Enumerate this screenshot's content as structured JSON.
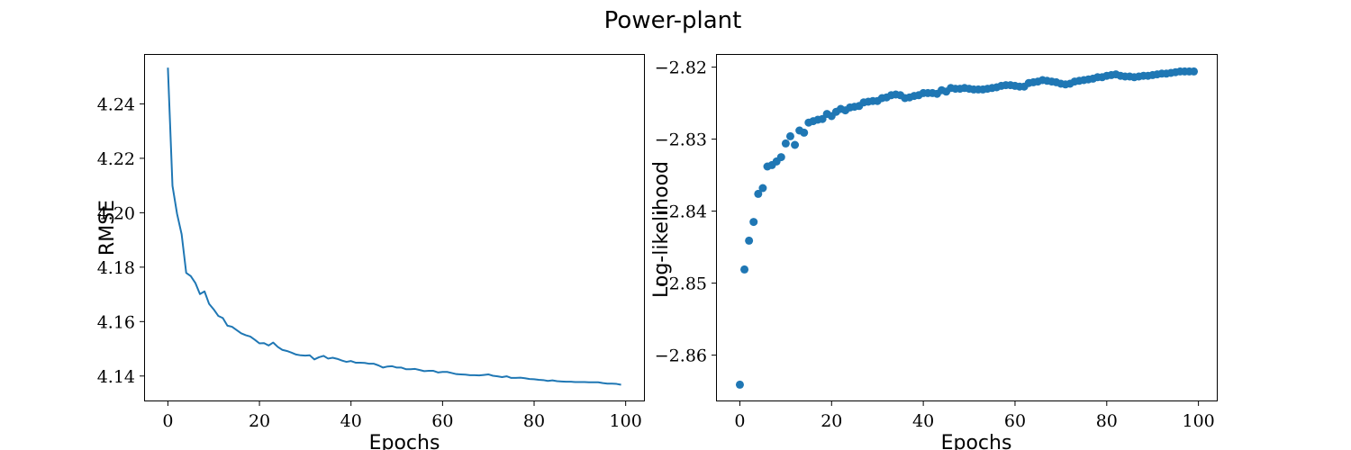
{
  "chart_data": {
    "title": "Power-plant",
    "charts": [
      {
        "type": "line",
        "xlabel": "Epochs",
        "ylabel": "RMSE",
        "xlim": [
          -5,
          104
        ],
        "ylim": [
          4.131,
          4.258
        ],
        "xticks": [
          0,
          20,
          40,
          60,
          80,
          100
        ],
        "yticks": [
          4.14,
          4.16,
          4.18,
          4.2,
          4.22,
          4.24
        ],
        "ytick_labels": [
          "4.14",
          "4.16",
          "4.18",
          "4.20",
          "4.22",
          "4.24"
        ],
        "color": "#1f77b4",
        "x": [
          0,
          1,
          2,
          3,
          4,
          5,
          6,
          7,
          8,
          9,
          10,
          11,
          12,
          13,
          14,
          15,
          16,
          17,
          18,
          19,
          20,
          21,
          22,
          23,
          24,
          25,
          26,
          27,
          28,
          29,
          30,
          31,
          32,
          33,
          34,
          35,
          36,
          37,
          38,
          39,
          40,
          41,
          42,
          43,
          44,
          45,
          46,
          47,
          48,
          49,
          50,
          51,
          52,
          53,
          54,
          55,
          56,
          57,
          58,
          59,
          60,
          61,
          62,
          63,
          64,
          65,
          66,
          67,
          68,
          69,
          70,
          71,
          72,
          73,
          74,
          75,
          76,
          77,
          78,
          79,
          80,
          81,
          82,
          83,
          84,
          85,
          86,
          87,
          88,
          89,
          90,
          91,
          92,
          93,
          94,
          95,
          96,
          97,
          98,
          99
        ],
        "y": [
          4.2533,
          4.2099,
          4.1996,
          4.1921,
          4.1779,
          4.1767,
          4.1742,
          4.1701,
          4.1711,
          4.1665,
          4.1645,
          4.1621,
          4.1613,
          4.1585,
          4.1581,
          4.1569,
          4.1557,
          4.155,
          4.1545,
          4.1533,
          4.152,
          4.1521,
          4.1512,
          4.1523,
          4.1507,
          4.1496,
          4.1492,
          4.1486,
          4.1479,
          4.1476,
          4.1475,
          4.1476,
          4.1461,
          4.1469,
          4.1474,
          4.1464,
          4.1467,
          4.1463,
          4.1457,
          4.1452,
          4.1455,
          4.1449,
          4.1449,
          4.1448,
          4.1445,
          4.1445,
          4.1439,
          4.1431,
          4.1435,
          4.1436,
          4.1431,
          4.1431,
          4.1425,
          4.1425,
          4.1426,
          4.1422,
          4.1418,
          4.1419,
          4.1419,
          4.1413,
          4.1415,
          4.1415,
          4.1411,
          4.1407,
          4.1406,
          4.1405,
          4.1403,
          4.1403,
          4.1402,
          4.1404,
          4.1406,
          4.1401,
          4.1399,
          4.1396,
          4.1399,
          4.1393,
          4.1393,
          4.1394,
          4.1392,
          4.1389,
          4.1388,
          4.1386,
          4.1385,
          4.1382,
          4.1384,
          4.1381,
          4.138,
          4.1379,
          4.1379,
          4.1378,
          4.1378,
          4.1378,
          4.1377,
          4.1377,
          4.1377,
          4.1374,
          4.1372,
          4.1372,
          4.1371,
          4.1368
        ]
      },
      {
        "type": "scatter",
        "xlabel": "Epochs",
        "ylabel": "Log-likelihood",
        "xlim": [
          -5,
          104
        ],
        "ylim": [
          -2.8663,
          -2.8183
        ],
        "xticks": [
          0,
          20,
          40,
          60,
          80,
          100
        ],
        "yticks": [
          -2.86,
          -2.85,
          -2.84,
          -2.83,
          -2.82
        ],
        "ytick_labels": [
          "−2.86",
          "−2.85",
          "−2.84",
          "−2.83",
          "−2.82"
        ],
        "color": "#1f77b4",
        "x": [
          0,
          1,
          2,
          3,
          4,
          5,
          6,
          7,
          8,
          9,
          10,
          11,
          12,
          13,
          14,
          15,
          16,
          17,
          18,
          19,
          20,
          21,
          22,
          23,
          24,
          25,
          26,
          27,
          28,
          29,
          30,
          31,
          32,
          33,
          34,
          35,
          36,
          37,
          38,
          39,
          40,
          41,
          42,
          43,
          44,
          45,
          46,
          47,
          48,
          49,
          50,
          51,
          52,
          53,
          54,
          55,
          56,
          57,
          58,
          59,
          60,
          61,
          62,
          63,
          64,
          65,
          66,
          67,
          68,
          69,
          70,
          71,
          72,
          73,
          74,
          75,
          76,
          77,
          78,
          79,
          80,
          81,
          82,
          83,
          84,
          85,
          86,
          87,
          88,
          89,
          90,
          91,
          92,
          93,
          94,
          95,
          96,
          97,
          98,
          99
        ],
        "y": [
          -2.8641,
          -2.8481,
          -2.8441,
          -2.8415,
          -2.8376,
          -2.8368,
          -2.8338,
          -2.8336,
          -2.8331,
          -2.8325,
          -2.8306,
          -2.8296,
          -2.8308,
          -2.8288,
          -2.8291,
          -2.8277,
          -2.8275,
          -2.8273,
          -2.8272,
          -2.8265,
          -2.8268,
          -2.8262,
          -2.8258,
          -2.826,
          -2.8256,
          -2.8255,
          -2.8254,
          -2.8249,
          -2.8248,
          -2.8247,
          -2.8247,
          -2.8243,
          -2.8242,
          -2.8239,
          -2.8238,
          -2.8239,
          -2.8243,
          -2.8242,
          -2.824,
          -2.8239,
          -2.8236,
          -2.8236,
          -2.8236,
          -2.8237,
          -2.8232,
          -2.8234,
          -2.8229,
          -2.823,
          -2.823,
          -2.8229,
          -2.823,
          -2.8231,
          -2.8231,
          -2.8231,
          -2.823,
          -2.8229,
          -2.8228,
          -2.8226,
          -2.8225,
          -2.8225,
          -2.8226,
          -2.8227,
          -2.8227,
          -2.8222,
          -2.8221,
          -2.822,
          -2.8218,
          -2.8219,
          -2.822,
          -2.8221,
          -2.8223,
          -2.8224,
          -2.8223,
          -2.822,
          -2.8219,
          -2.8218,
          -2.8217,
          -2.8216,
          -2.8214,
          -2.8214,
          -2.8212,
          -2.8211,
          -2.821,
          -2.8212,
          -2.8213,
          -2.8213,
          -2.8214,
          -2.8213,
          -2.8212,
          -2.8212,
          -2.8211,
          -2.821,
          -2.8209,
          -2.8209,
          -2.8208,
          -2.8207,
          -2.8206,
          -2.8206,
          -2.8206,
          -2.8206
        ]
      }
    ]
  }
}
